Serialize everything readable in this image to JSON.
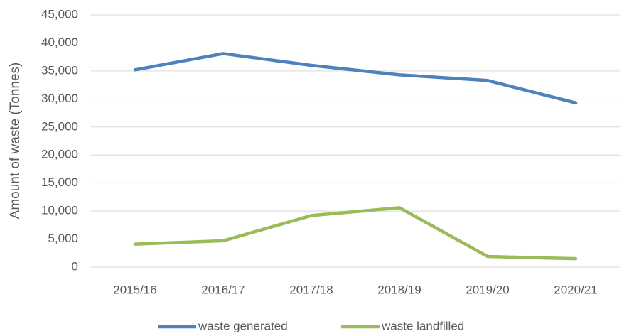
{
  "chart_data": {
    "type": "line",
    "y_label": "Amount of waste (Tonnes)",
    "categories": [
      "2015/16",
      "2016/17",
      "2017/18",
      "2018/19",
      "2019/20",
      "2020/21"
    ],
    "series": [
      {
        "name": "waste generated",
        "color": "#4f81bd",
        "values": [
          35200,
          38100,
          36000,
          34300,
          33300,
          29300
        ]
      },
      {
        "name": "waste landfilled",
        "color": "#9bbb59",
        "values": [
          4100,
          4700,
          9200,
          10600,
          1900,
          1500
        ]
      }
    ],
    "ylim": [
      0,
      45000
    ],
    "yticks": [
      0,
      {
        "value": 5000,
        "label": "5,000"
      },
      {
        "value": 10000,
        "label": "10,000"
      },
      {
        "value": 15000,
        "label": "15,000"
      },
      {
        "value": 20000,
        "label": "20,000"
      },
      {
        "value": 25000,
        "label": "25,000"
      },
      {
        "value": 30000,
        "label": "30,000"
      },
      {
        "value": 35000,
        "label": "35,000"
      },
      {
        "value": 40000,
        "label": "40,000"
      },
      {
        "value": 45000,
        "label": "45,000"
      }
    ],
    "grid": true,
    "legend": "bottom"
  }
}
